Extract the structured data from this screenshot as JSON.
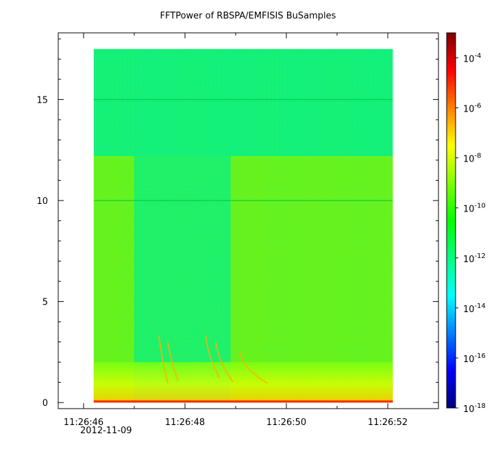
{
  "chart_data": {
    "type": "heatmap",
    "title": "FFTPower of RBSPA/EMFISIS  BuSamples",
    "xlabel": "",
    "ylabel": "",
    "x_ticks": [
      "11:26:46",
      "11:26:48",
      "11:26:50",
      "11:26:52"
    ],
    "x_date_label": "2012-11-09",
    "y_ticks": [
      0,
      5,
      10,
      15
    ],
    "ylim": [
      -0.3,
      18.3
    ],
    "xlim": [
      "11:26:45.5",
      "11:26:53"
    ],
    "data_extent": {
      "x_start": "11:26:46.2",
      "x_end": "11:26:52.1",
      "y_min": 0,
      "y_max": 17.5
    },
    "colorbar": {
      "scale": "log",
      "range": [
        "1e-18",
        "1e-3"
      ],
      "tick_labels": [
        "10^-4",
        "10^-6",
        "10^-8",
        "10^-10",
        "10^-12",
        "10^-14",
        "10^-16",
        "10^-18"
      ],
      "colors": [
        "#00007f",
        "#0000ff",
        "#0080ff",
        "#00ffff",
        "#00ff80",
        "#00ff00",
        "#80ff00",
        "#ffff00",
        "#ff8000",
        "#ff0000",
        "#7f0000"
      ]
    },
    "features": [
      {
        "kind": "band_boundary",
        "y": 12.2,
        "note": "power drops above ~12 in noise"
      },
      {
        "kind": "quiet_region",
        "x_range": [
          "11:26:47",
          "11:26:48.9"
        ],
        "y_range": [
          0,
          12.2
        ]
      },
      {
        "kind": "horizontal_line",
        "y": 15.0
      },
      {
        "kind": "horizontal_line",
        "y": 10.0
      },
      {
        "kind": "low_freq_band",
        "y_range": [
          0,
          0.6
        ],
        "level": "high"
      }
    ]
  }
}
